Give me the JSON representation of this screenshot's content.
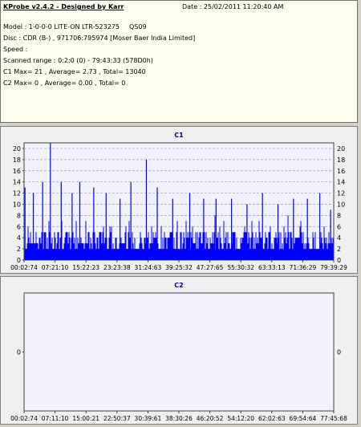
{
  "info": {
    "title": "KProbe v2.4.2 - Designed by Karr",
    "date": "Date : 25/02/2011 11:20:40 AM",
    "model": "Model : 1-0-0-0 LITE-ON LTR-523275",
    "firmware": "QS09",
    "disc": "Disc : CDR (B-) , 971706:795974 [Moser Baer India Limited]",
    "speed": "Speed :",
    "scanned_range": "Scanned range : 0:2:0 (0) - 79:43:33 (578D0h)",
    "c1_stats": "C1 Max= 21 , Average= 2.73 , Total= 13040",
    "c2_stats": "C2 Max= 0 , Average= 0.00 , Total= 0"
  },
  "colors": {
    "bar": "#0000ff",
    "plot_bg": "#f2f2ff",
    "grid": "#9a9ab0",
    "title_color": "#00008b"
  },
  "chart_data": [
    {
      "type": "bar",
      "title": "C1",
      "ylim": [
        0,
        21
      ],
      "yticks": [
        0,
        2,
        4,
        6,
        8,
        10,
        12,
        14,
        16,
        18,
        20
      ],
      "xticks": [
        "00:02:74",
        "07:21:10",
        "15:22:23",
        "23:23:38",
        "31:24:63",
        "39:25:32",
        "47:27:65",
        "55:30:32",
        "63:33:13",
        "71:36:29",
        "79:39:29"
      ],
      "grid": "horizontal dashed",
      "max": 21,
      "average": 2.73,
      "peaks": [
        {
          "pos": 0.003,
          "value": 13
        },
        {
          "pos": 0.03,
          "value": 12
        },
        {
          "pos": 0.06,
          "value": 14
        },
        {
          "pos": 0.085,
          "value": 21
        },
        {
          "pos": 0.12,
          "value": 14
        },
        {
          "pos": 0.155,
          "value": 12
        },
        {
          "pos": 0.18,
          "value": 14
        },
        {
          "pos": 0.225,
          "value": 13
        },
        {
          "pos": 0.265,
          "value": 12
        },
        {
          "pos": 0.31,
          "value": 11
        },
        {
          "pos": 0.345,
          "value": 14
        },
        {
          "pos": 0.395,
          "value": 18
        },
        {
          "pos": 0.43,
          "value": 13
        },
        {
          "pos": 0.48,
          "value": 11
        },
        {
          "pos": 0.535,
          "value": 12
        },
        {
          "pos": 0.58,
          "value": 11
        },
        {
          "pos": 0.62,
          "value": 11
        },
        {
          "pos": 0.67,
          "value": 11
        },
        {
          "pos": 0.72,
          "value": 10
        },
        {
          "pos": 0.77,
          "value": 12
        },
        {
          "pos": 0.82,
          "value": 10
        },
        {
          "pos": 0.87,
          "value": 11
        },
        {
          "pos": 0.915,
          "value": 11
        },
        {
          "pos": 0.955,
          "value": 12
        },
        {
          "pos": 0.99,
          "value": 9
        }
      ]
    },
    {
      "type": "bar",
      "title": "C2",
      "ylim": [
        -1,
        1
      ],
      "yticks": [
        0
      ],
      "xticks": [
        "00:02:74",
        "07:11:10",
        "15:00:21",
        "22:50:37",
        "30:39:61",
        "38:30:26",
        "46:20:52",
        "54:12:20",
        "62:02:63",
        "69:54:64",
        "77:45:68"
      ],
      "max": 0,
      "average": 0.0,
      "values": []
    }
  ]
}
